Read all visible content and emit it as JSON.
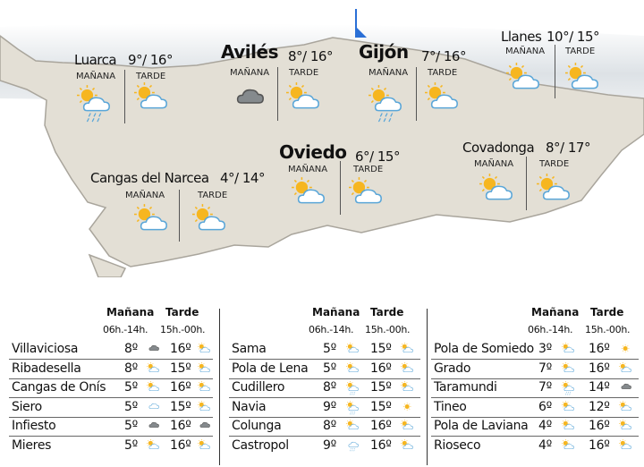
{
  "colors": {
    "land": "#e3dfd5",
    "border": "#a9a59c",
    "sea_shade": "#dfe3e6",
    "flag": "#2a6fd6",
    "sun": "#f6b620",
    "cloud_outline": "#5aa6d8",
    "grey_cloud": "#858a8d"
  },
  "map": {
    "period_labels": {
      "morning": "MAÑANA",
      "afternoon": "TARDE"
    },
    "cities": [
      {
        "name": "Luarca",
        "temps": "9°/ 16°",
        "morning_icon": "sun-cloud-rain",
        "afternoon_icon": "sun-cloud",
        "big": false
      },
      {
        "name": "Avilés",
        "temps": "8°/ 16°",
        "morning_icon": "cloud",
        "afternoon_icon": "sun-cloud",
        "big": true
      },
      {
        "name": "Gijón",
        "temps": "7°/ 16°",
        "morning_icon": "sun-cloud-rain",
        "afternoon_icon": "sun-cloud",
        "big": true
      },
      {
        "name": "Llanes",
        "temps": "10°/ 15°",
        "morning_icon": "sun-cloud",
        "afternoon_icon": "sun-cloud",
        "big": false
      },
      {
        "name": "Oviedo",
        "temps": "6°/ 15°",
        "morning_icon": "sun-cloud",
        "afternoon_icon": "sun-cloud",
        "big": true
      },
      {
        "name": "Covadonga",
        "temps": "8°/ 17°",
        "morning_icon": "sun-cloud",
        "afternoon_icon": "sun-cloud",
        "big": false
      },
      {
        "name": "Cangas del Narcea",
        "temps": "4°/ 14°",
        "morning_icon": "sun-cloud",
        "afternoon_icon": "sun-cloud",
        "big": false
      }
    ]
  },
  "tables": {
    "header": {
      "morning": "Mañana",
      "afternoon": "Tarde",
      "morning_hours": "06h.-14h.",
      "afternoon_hours": "15h.-00h."
    },
    "columns": [
      [
        {
          "name": "Villaviciosa",
          "m": "8º",
          "mi": "cloud",
          "a": "16º",
          "ai": "sun-cloud"
        },
        {
          "name": "Ribadesella",
          "m": "8º",
          "mi": "sun-cloud",
          "a": "15º",
          "ai": "sun-cloud"
        },
        {
          "name": "Cangas de Onís",
          "m": "5º",
          "mi": "sun-cloud",
          "a": "16º",
          "ai": "sun-cloud"
        },
        {
          "name": "Siero",
          "m": "5º",
          "mi": "cloud-light",
          "a": "15º",
          "ai": "sun-cloud"
        },
        {
          "name": "Infiesto",
          "m": "5º",
          "mi": "cloud",
          "a": "16º",
          "ai": "cloud"
        },
        {
          "name": "Mieres",
          "m": "5º",
          "mi": "sun-cloud",
          "a": "16º",
          "ai": "sun-cloud"
        }
      ],
      [
        {
          "name": "Sama",
          "m": "5º",
          "mi": "sun-cloud",
          "a": "15º",
          "ai": "sun-cloud"
        },
        {
          "name": "Pola de Lena",
          "m": "5º",
          "mi": "sun-cloud",
          "a": "16º",
          "ai": "sun-cloud"
        },
        {
          "name": "Cudillero",
          "m": "8º",
          "mi": "sun-cloud-rain",
          "a": "15º",
          "ai": "sun-cloud"
        },
        {
          "name": "Navia",
          "m": "9º",
          "mi": "sun-cloud-rain",
          "a": "15º",
          "ai": "sun"
        },
        {
          "name": "Colunga",
          "m": "8º",
          "mi": "sun-cloud",
          "a": "16º",
          "ai": "sun-cloud"
        },
        {
          "name": "Castropol",
          "m": "9º",
          "mi": "rain-cloud",
          "a": "16º",
          "ai": "sun-cloud"
        }
      ],
      [
        {
          "name": "Pola de Somiedo",
          "m": "3º",
          "mi": "sun-cloud",
          "a": "16º",
          "ai": "sun"
        },
        {
          "name": "Grado",
          "m": "7º",
          "mi": "sun-cloud",
          "a": "16º",
          "ai": "sun-cloud"
        },
        {
          "name": "Taramundi",
          "m": "7º",
          "mi": "sun-cloud-rain",
          "a": "14º",
          "ai": "cloud"
        },
        {
          "name": "Tineo",
          "m": "6º",
          "mi": "sun-cloud",
          "a": "12º",
          "ai": "sun-cloud"
        },
        {
          "name": "Pola de Laviana",
          "m": "4º",
          "mi": "sun-cloud",
          "a": "16º",
          "ai": "sun-cloud"
        },
        {
          "name": "Rioseco",
          "m": "4º",
          "mi": "sun-cloud",
          "a": "16º",
          "ai": "sun-cloud"
        }
      ]
    ]
  }
}
